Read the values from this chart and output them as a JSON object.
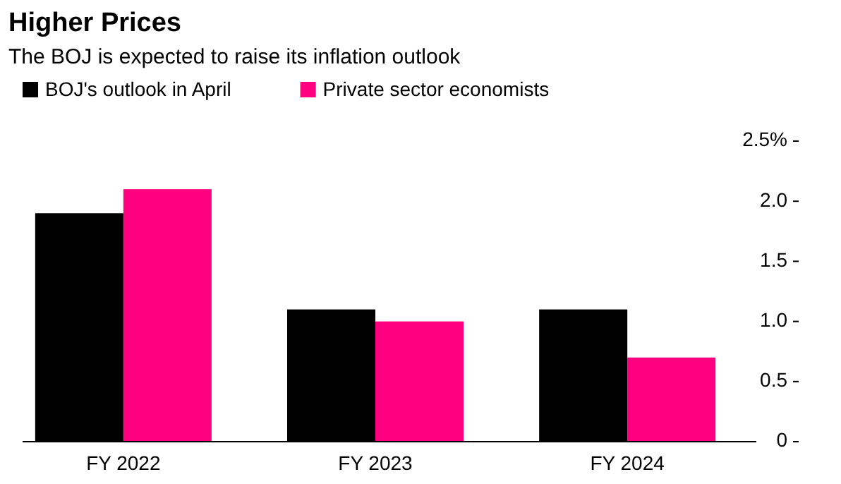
{
  "chart_data": {
    "type": "bar",
    "title": "Higher Prices",
    "subtitle": "The BOJ is expected to raise its inflation outlook",
    "categories": [
      "FY 2022",
      "FY 2023",
      "FY 2024"
    ],
    "series": [
      {
        "name": "BOJ's outlook in April",
        "color": "#000000",
        "values": [
          1.9,
          1.1,
          1.1
        ]
      },
      {
        "name": "Private sector economists",
        "color": "#ff0080",
        "values": [
          2.1,
          1.0,
          0.7
        ]
      }
    ],
    "ylim": [
      0,
      2.5
    ],
    "yticks": [
      0,
      0.5,
      {
        "value": 1,
        "label": "1.0"
      },
      {
        "value": 1.5,
        "label": "1.5"
      },
      {
        "value": 2.0,
        "label": "2.0"
      },
      {
        "value": 2.5,
        "label": "2.5%"
      }
    ],
    "legend": "top left",
    "grid": false
  }
}
